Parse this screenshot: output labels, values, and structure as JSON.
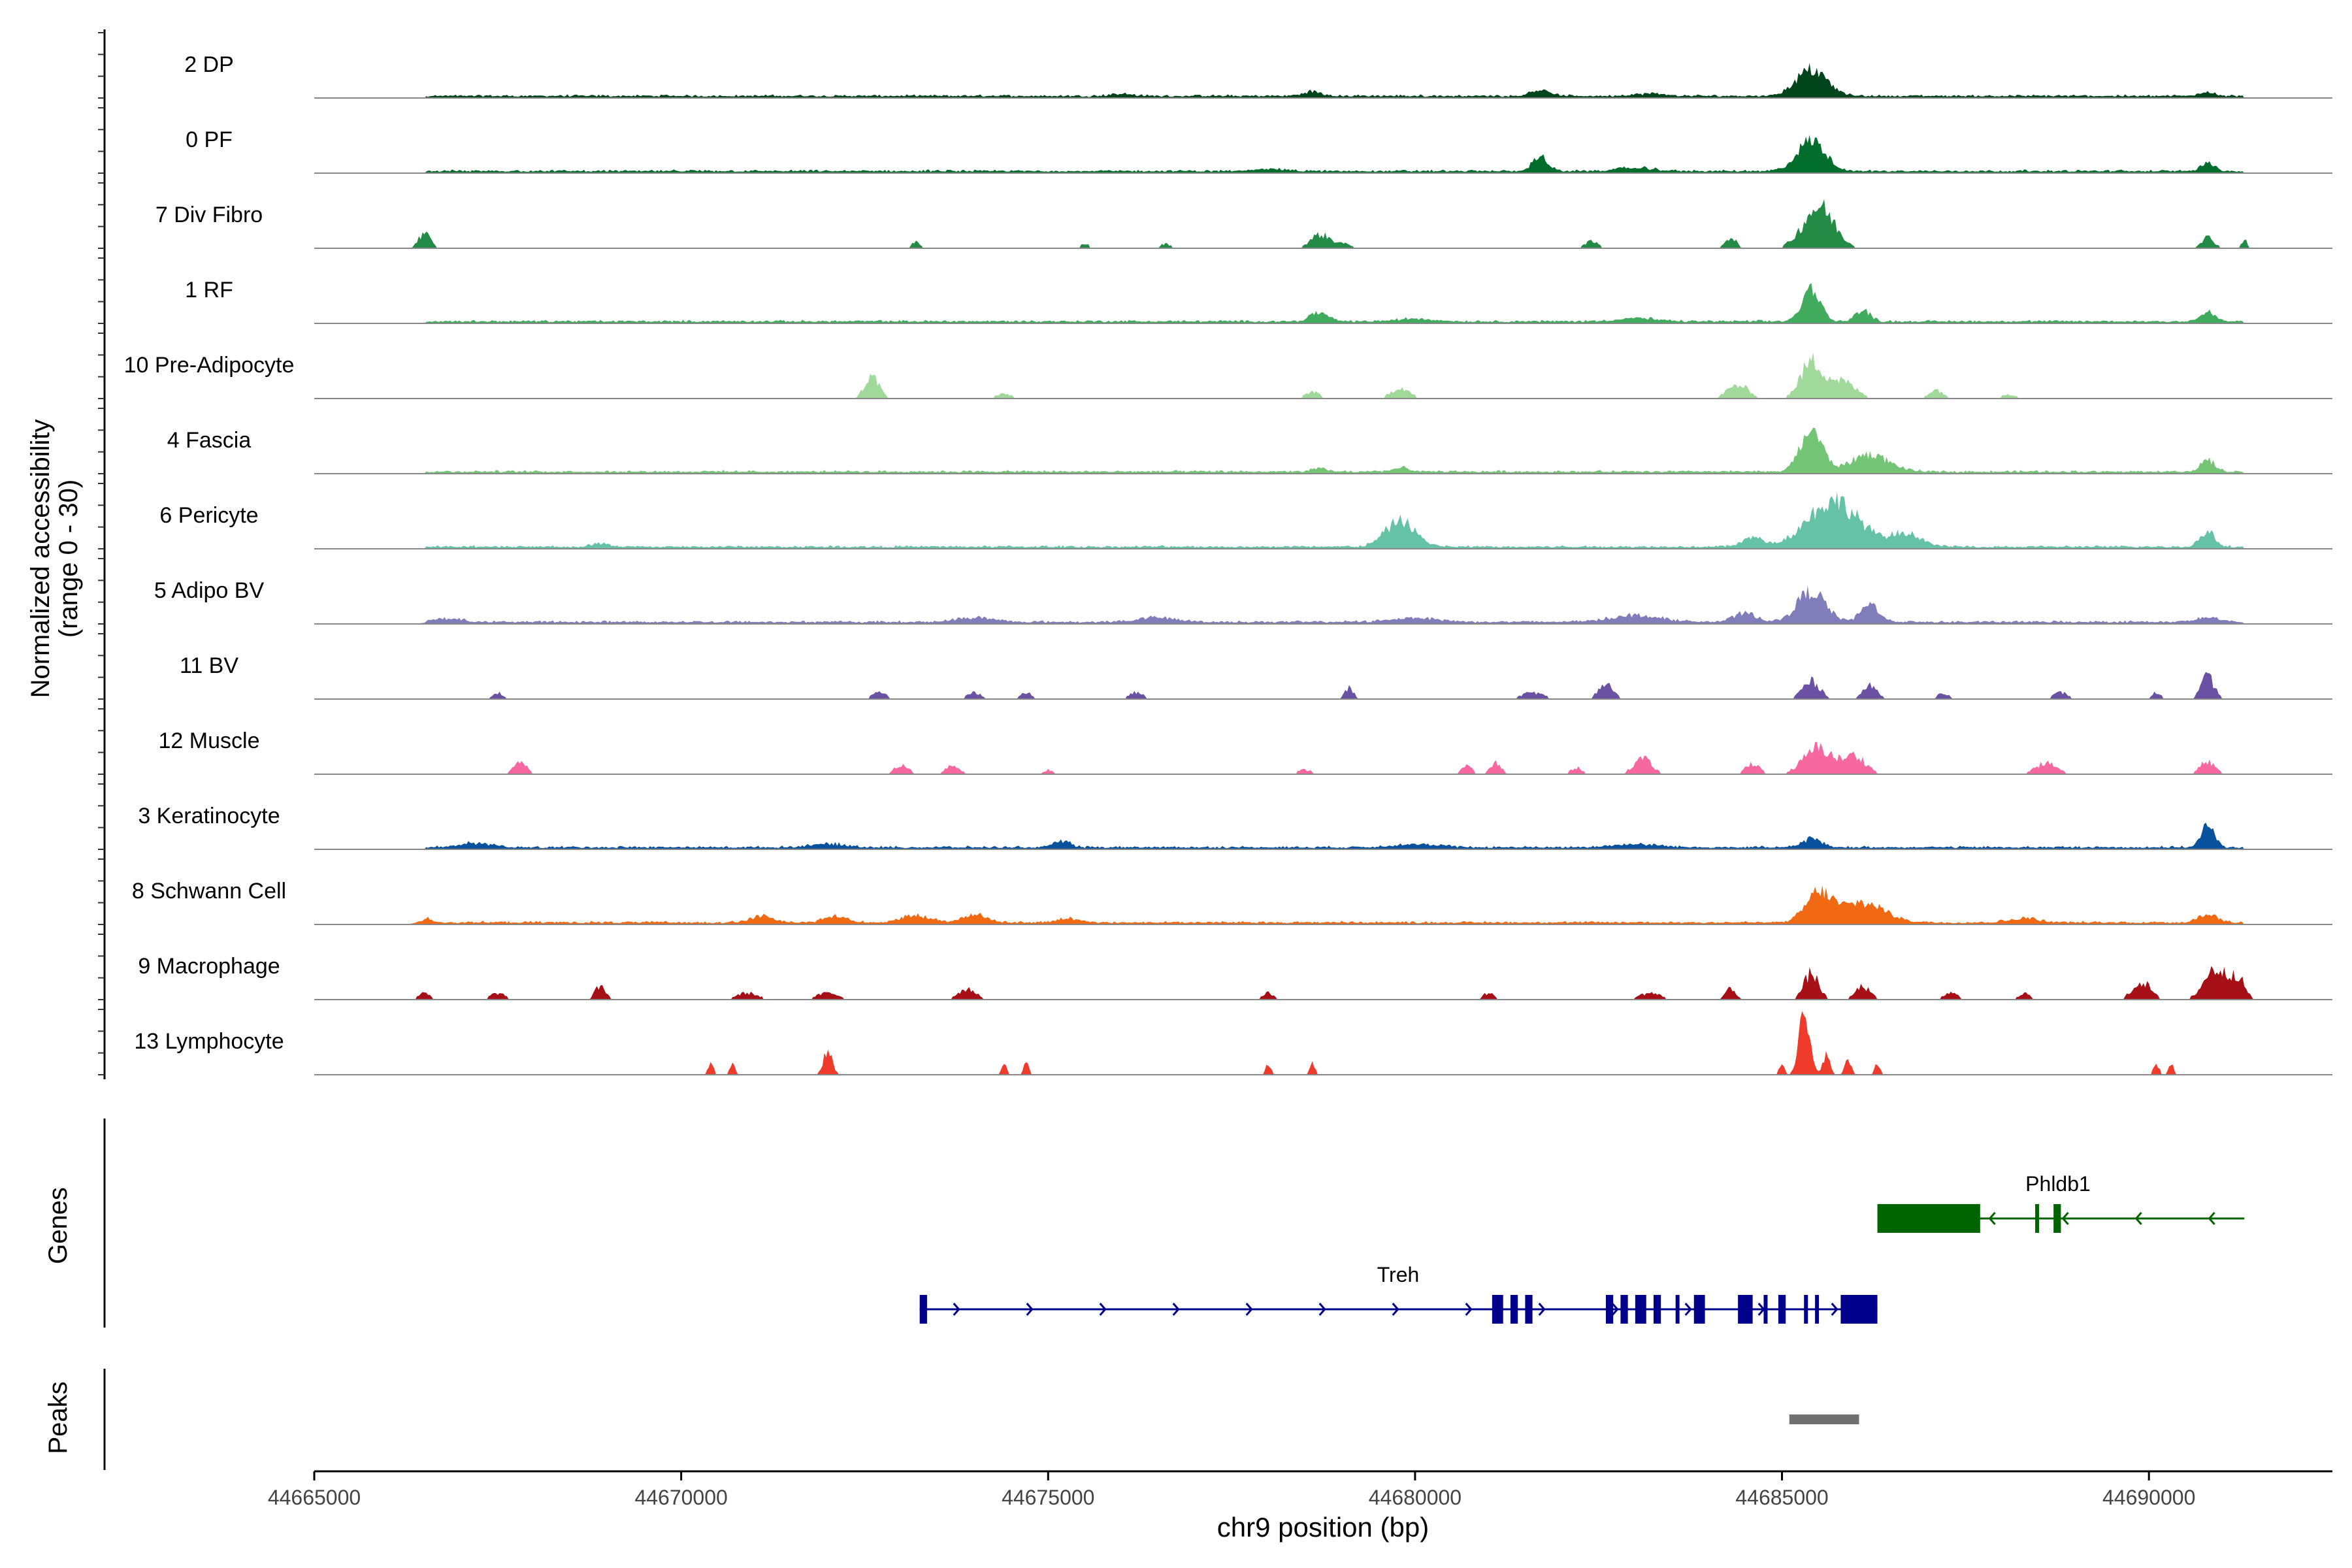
{
  "chart_data": {
    "type": "area",
    "title": "",
    "chromosome": "chr9",
    "xlabel": "chr9 position (bp)",
    "ylabel": "Normalized accessibility",
    "ylabel_range": "(range 0 - 30)",
    "ylim": [
      0,
      30
    ],
    "xlim": [
      44665000,
      44692500
    ],
    "x_ticks": [
      44665000,
      44670000,
      44675000,
      44680000,
      44685000,
      44690000
    ],
    "x_tick_labels": [
      "44665000",
      "44670000",
      "44675000",
      "44680000",
      "44685000",
      "44690000"
    ],
    "tracks": [
      {
        "name": "2 DP",
        "color": "#00441B",
        "style": "continuous",
        "peaks": [
          [
            44685400,
            12,
            420
          ],
          [
            44681700,
            3,
            250
          ],
          [
            44678600,
            2,
            250
          ],
          [
            44690800,
            2,
            200
          ],
          [
            44683200,
            1,
            400
          ],
          [
            44676000,
            1,
            300
          ]
        ]
      },
      {
        "name": "0 PF",
        "color": "#006D2C",
        "style": "continuous",
        "peaks": [
          [
            44685400,
            14,
            380
          ],
          [
            44681700,
            7,
            200
          ],
          [
            44690800,
            4,
            180
          ],
          [
            44683000,
            1.5,
            500
          ],
          [
            44678000,
            1.2,
            400
          ]
        ]
      },
      {
        "name": "7 Div Fibro",
        "color": "#238B45",
        "style": "sparse",
        "peaks": [
          [
            44685500,
            19,
            420
          ],
          [
            44666500,
            7,
            160
          ],
          [
            44678700,
            6,
            260
          ],
          [
            44690800,
            5,
            180
          ],
          [
            44684300,
            5,
            160
          ],
          [
            44691300,
            4,
            80
          ],
          [
            44673200,
            3,
            120
          ],
          [
            44682400,
            3,
            200
          ],
          [
            44676600,
            2,
            160
          ],
          [
            44679000,
            2,
            300
          ],
          [
            44675500,
            2,
            120
          ]
        ]
      },
      {
        "name": "1 RF",
        "color": "#41AB5D",
        "style": "continuous",
        "peaks": [
          [
            44685400,
            15,
            250
          ],
          [
            44690800,
            4,
            200
          ],
          [
            44678700,
            4,
            250
          ],
          [
            44686100,
            5,
            200
          ],
          [
            44683000,
            1.5,
            500
          ],
          [
            44680000,
            1.2,
            500
          ]
        ]
      },
      {
        "name": "10 Pre-Adipocyte",
        "color": "#A1D99B",
        "style": "sparse",
        "peaks": [
          [
            44685400,
            16,
            300
          ],
          [
            44672600,
            10,
            200
          ],
          [
            44679800,
            5,
            250
          ],
          [
            44684400,
            6,
            300
          ],
          [
            44685800,
            8,
            380
          ],
          [
            44687100,
            4,
            200
          ],
          [
            44678600,
            3,
            200
          ],
          [
            44674400,
            2,
            250
          ],
          [
            44688100,
            2,
            200
          ]
        ]
      },
      {
        "name": "4 Fascia",
        "color": "#74C476",
        "style": "continuous",
        "peaks": [
          [
            44685400,
            19,
            300
          ],
          [
            44686200,
            8,
            500
          ],
          [
            44690800,
            5,
            200
          ],
          [
            44679800,
            2,
            200
          ],
          [
            44678700,
            1.5,
            200
          ]
        ]
      },
      {
        "name": "6 Pericyte",
        "color": "#66C2A4",
        "style": "continuous",
        "peaks": [
          [
            44685700,
            21,
            700
          ],
          [
            44679800,
            12,
            400
          ],
          [
            44690800,
            7,
            200
          ],
          [
            44684600,
            4,
            300
          ],
          [
            44686700,
            6,
            400
          ],
          [
            44668900,
            1.5,
            200
          ]
        ]
      },
      {
        "name": "5 Adipo BV",
        "color": "#807DBA",
        "style": "continuous",
        "peaks": [
          [
            44685400,
            14,
            380
          ],
          [
            44686200,
            8,
            250
          ],
          [
            44684500,
            4,
            300
          ],
          [
            44683000,
            3,
            700
          ],
          [
            44680000,
            2,
            600
          ],
          [
            44676500,
            2,
            500
          ],
          [
            44674000,
            2,
            500
          ],
          [
            44690800,
            2,
            300
          ],
          [
            44666800,
            1.5,
            400
          ]
        ]
      },
      {
        "name": "11 BV",
        "color": "#6A51A3",
        "style": "sparse",
        "peaks": [
          [
            44690800,
            10,
            180
          ],
          [
            44685400,
            8,
            250
          ],
          [
            44686200,
            6,
            200
          ],
          [
            44682600,
            7,
            200
          ],
          [
            44679100,
            5,
            120
          ],
          [
            44672700,
            3,
            200
          ],
          [
            44674000,
            3,
            200
          ],
          [
            44674700,
            3,
            150
          ],
          [
            44676200,
            3,
            200
          ],
          [
            44667500,
            3,
            150
          ],
          [
            44681600,
            3,
            300
          ],
          [
            44687200,
            3,
            150
          ],
          [
            44688800,
            3,
            200
          ],
          [
            44690100,
            3,
            120
          ],
          [
            44665800,
            0,
            10
          ]
        ]
      },
      {
        "name": "12 Muscle",
        "color": "#F768A1",
        "style": "sparse",
        "peaks": [
          [
            44685500,
            12,
            400
          ],
          [
            44686000,
            8,
            300
          ],
          [
            44683100,
            7,
            250
          ],
          [
            44681100,
            5,
            150
          ],
          [
            44690800,
            6,
            200
          ],
          [
            44688600,
            5,
            300
          ],
          [
            44667800,
            5,
            200
          ],
          [
            44673000,
            4,
            200
          ],
          [
            44673700,
            4,
            200
          ],
          [
            44684600,
            5,
            200
          ],
          [
            44680700,
            4,
            150
          ],
          [
            44682200,
            3,
            150
          ],
          [
            44675000,
            2,
            150
          ],
          [
            44678500,
            2,
            200
          ]
        ]
      },
      {
        "name": "3 Keratinocyte",
        "color": "#08519C",
        "style": "continuous",
        "peaks": [
          [
            44690800,
            10,
            180
          ],
          [
            44685400,
            4,
            250
          ],
          [
            44675200,
            3,
            200
          ],
          [
            44667200,
            2,
            400
          ],
          [
            44680000,
            1.5,
            600
          ],
          [
            44683000,
            1.5,
            600
          ],
          [
            44672000,
            1.5,
            500
          ]
        ]
      },
      {
        "name": "8 Schwann Cell",
        "color": "#F16913",
        "style": "continuous",
        "peaks": [
          [
            44685500,
            13,
            350
          ],
          [
            44686100,
            9,
            600
          ],
          [
            44690800,
            4,
            250
          ],
          [
            44673200,
            3,
            400
          ],
          [
            44674000,
            4,
            300
          ],
          [
            44671100,
            3,
            300
          ],
          [
            44672100,
            3,
            300
          ],
          [
            44666500,
            2,
            200
          ],
          [
            44675300,
            2,
            300
          ],
          [
            44688300,
            2,
            400
          ]
        ]
      },
      {
        "name": "9 Macrophage",
        "color": "#A50F15",
        "style": "sparse",
        "peaks": [
          [
            44690900,
            14,
            300
          ],
          [
            44691200,
            10,
            200
          ],
          [
            44685400,
            12,
            200
          ],
          [
            44689900,
            8,
            250
          ],
          [
            44686100,
            6,
            200
          ],
          [
            44668900,
            6,
            150
          ],
          [
            44673900,
            5,
            250
          ],
          [
            44684300,
            5,
            150
          ],
          [
            44683200,
            3,
            300
          ],
          [
            44666500,
            3,
            150
          ],
          [
            44667500,
            3,
            200
          ],
          [
            44670900,
            3,
            300
          ],
          [
            44672000,
            3,
            300
          ],
          [
            44678000,
            3,
            150
          ],
          [
            44681000,
            3,
            150
          ],
          [
            44687300,
            3,
            200
          ],
          [
            44688300,
            3,
            150
          ]
        ]
      },
      {
        "name": "13 Lymphocyte",
        "color": "#EF3B2C",
        "style": "sparse",
        "peaks": [
          [
            44685300,
            26,
            150
          ],
          [
            44672000,
            11,
            120
          ],
          [
            44685600,
            9,
            100
          ],
          [
            44685900,
            6,
            100
          ],
          [
            44670400,
            5,
            80
          ],
          [
            44670700,
            5,
            80
          ],
          [
            44674400,
            5,
            80
          ],
          [
            44674700,
            5,
            80
          ],
          [
            44678000,
            5,
            80
          ],
          [
            44678600,
            5,
            80
          ],
          [
            44686300,
            5,
            80
          ],
          [
            44685000,
            5,
            80
          ],
          [
            44690100,
            5,
            80
          ],
          [
            44690300,
            5,
            80
          ]
        ]
      }
    ],
    "genes": {
      "label": "Genes",
      "items": [
        {
          "name": "Phldb1",
          "color": "#006400",
          "strand": "-",
          "start": 44686300,
          "end": 44691300,
          "exons": [
            [
              44686300,
              44687700
            ],
            [
              44688700,
              44688800
            ],
            [
              44688450,
              44688480
            ]
          ]
        },
        {
          "name": "Treh",
          "color": "#00008B",
          "strand": "+",
          "start": 44673250,
          "end": 44686300,
          "exons": [
            [
              44673250,
              44673350
            ],
            [
              44681050,
              44681200
            ],
            [
              44681300,
              44681400
            ],
            [
              44681500,
              44681600
            ],
            [
              44682600,
              44682700
            ],
            [
              44682800,
              44682900
            ],
            [
              44683000,
              44683150
            ],
            [
              44683250,
              44683350
            ],
            [
              44683550,
              44683600
            ],
            [
              44683800,
              44683950
            ],
            [
              44684400,
              44684600
            ],
            [
              44684750,
              44684800
            ],
            [
              44684950,
              44685050
            ],
            [
              44685300,
              44685350
            ],
            [
              44685450,
              44685500
            ],
            [
              44685800,
              44686300
            ]
          ]
        }
      ]
    },
    "peaks": {
      "label": "Peaks",
      "items": [
        [
          44685100,
          44686050
        ]
      ]
    }
  }
}
